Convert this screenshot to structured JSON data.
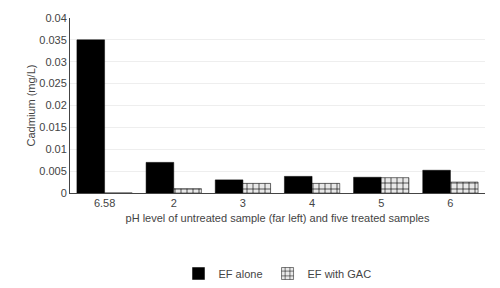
{
  "chart_data": {
    "type": "bar",
    "categories": [
      "6.58",
      "2",
      "3",
      "4",
      "5",
      "6"
    ],
    "series": [
      {
        "name": "EF alone",
        "color": "#000000",
        "values": [
          0.035,
          0.007,
          0.003,
          0.0038,
          0.0036,
          0.0052
        ]
      },
      {
        "name": "EF with GAC",
        "color": "#e8e8e8",
        "values": [
          0,
          0.001,
          0.0022,
          0.0022,
          0.0035,
          0.0025
        ]
      }
    ],
    "xlabel": "pH level of untreated sample (far left) and five treated samples",
    "ylabel": "Cadmium (mg/L)",
    "ylim": [
      0,
      0.04
    ],
    "yticks": [
      0,
      0.005,
      0.01,
      0.015,
      0.02,
      0.025,
      0.03,
      0.035,
      0.04
    ],
    "grid": true,
    "legend": "bottom"
  }
}
